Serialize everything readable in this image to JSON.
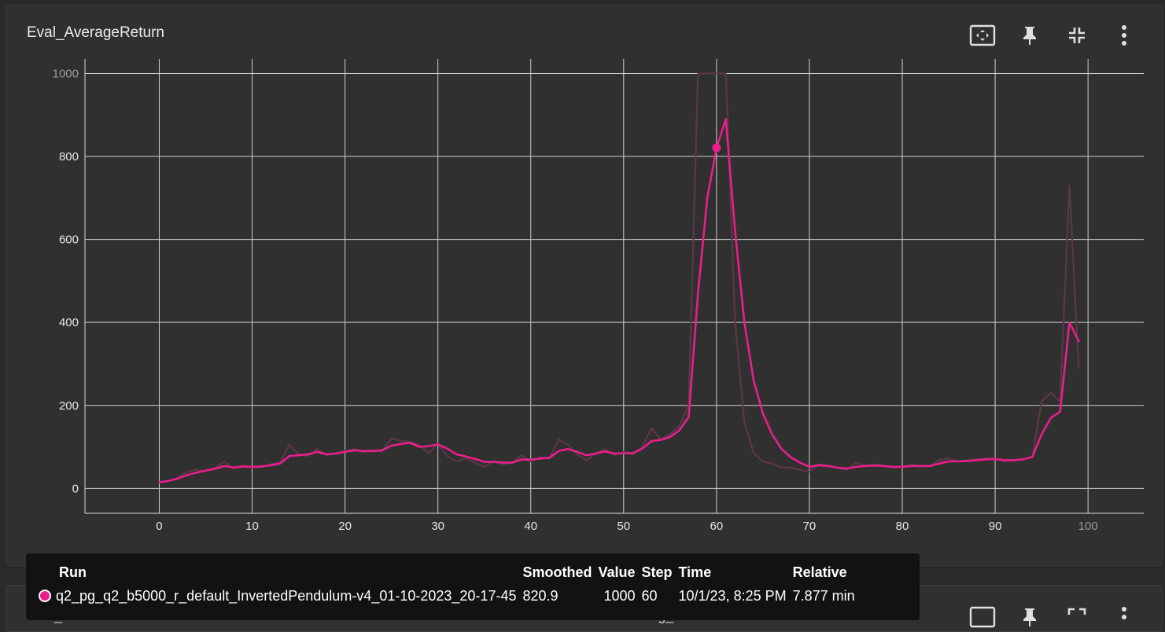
{
  "card": {
    "title": "Eval_AverageReturn",
    "tools": [
      {
        "name": "fit-domain-icon"
      },
      {
        "name": "pin-icon"
      },
      {
        "name": "collapse-icon"
      },
      {
        "name": "more-vert-icon"
      }
    ]
  },
  "chart_data": {
    "type": "line",
    "title": "Eval_AverageReturn",
    "xlabel": "",
    "ylabel": "",
    "xlim": [
      -8,
      106
    ],
    "ylim": [
      -60,
      1035
    ],
    "x_ticks": [
      0,
      10,
      20,
      30,
      40,
      50,
      60,
      70,
      80,
      90,
      100
    ],
    "y_ticks": [
      0,
      200,
      400,
      600,
      800,
      1000
    ],
    "grid": true,
    "colors": {
      "smoothed": "#e91e8c",
      "raw": "#5a3848"
    },
    "series": [
      {
        "name": "q2_pg_q2_b5000_r_default_InvertedPendulum-v4_01-10-2023_20-17-45",
        "role": "raw",
        "x": [
          0,
          1,
          2,
          3,
          4,
          5,
          6,
          7,
          8,
          9,
          10,
          11,
          12,
          13,
          14,
          15,
          16,
          17,
          18,
          19,
          20,
          21,
          22,
          23,
          24,
          25,
          26,
          27,
          28,
          29,
          30,
          31,
          32,
          33,
          34,
          35,
          36,
          37,
          38,
          39,
          40,
          41,
          42,
          43,
          44,
          45,
          46,
          47,
          48,
          49,
          50,
          51,
          52,
          53,
          54,
          55,
          56,
          57,
          58,
          59,
          60,
          61,
          62,
          63,
          64,
          65,
          66,
          67,
          68,
          69,
          70,
          71,
          72,
          73,
          74,
          75,
          76,
          77,
          78,
          79,
          80,
          81,
          82,
          83,
          84,
          85,
          86,
          87,
          88,
          89,
          90,
          91,
          92,
          93,
          94,
          95,
          96,
          97,
          98,
          99
        ],
        "y": [
          15,
          18,
          25,
          40,
          45,
          42,
          50,
          65,
          48,
          55,
          50,
          52,
          58,
          62,
          105,
          82,
          78,
          95,
          80,
          85,
          90,
          95,
          88,
          92,
          90,
          120,
          115,
          112,
          105,
          85,
          108,
          78,
          65,
          72,
          62,
          52,
          65,
          58,
          62,
          80,
          65,
          75,
          72,
          118,
          105,
          82,
          68,
          85,
          95,
          80,
          88,
          82,
          100,
          145,
          118,
          130,
          150,
          200,
          1000,
          1000,
          1000,
          1000,
          400,
          160,
          85,
          65,
          60,
          50,
          50,
          45,
          40,
          58,
          55,
          50,
          45,
          62,
          55,
          58,
          55,
          50,
          52,
          58,
          52,
          55,
          68,
          72,
          65,
          68,
          70,
          72,
          72,
          65,
          68,
          70,
          75,
          210,
          230,
          210,
          730,
          290
        ]
      },
      {
        "name": "q2_pg_q2_b5000_r_default_InvertedPendulum-v4_01-10-2023_20-17-45",
        "role": "smoothed",
        "x": [
          0,
          1,
          2,
          3,
          4,
          5,
          6,
          7,
          8,
          9,
          10,
          11,
          12,
          13,
          14,
          15,
          16,
          17,
          18,
          19,
          20,
          21,
          22,
          23,
          24,
          25,
          26,
          27,
          28,
          29,
          30,
          31,
          32,
          33,
          34,
          35,
          36,
          37,
          38,
          39,
          40,
          41,
          42,
          43,
          44,
          45,
          46,
          47,
          48,
          49,
          50,
          51,
          52,
          53,
          54,
          55,
          56,
          57,
          58,
          59,
          60,
          61,
          62,
          63,
          64,
          65,
          66,
          67,
          68,
          69,
          70,
          71,
          72,
          73,
          74,
          75,
          76,
          77,
          78,
          79,
          80,
          81,
          82,
          83,
          84,
          85,
          86,
          87,
          88,
          89,
          90,
          91,
          92,
          93,
          94,
          95,
          96,
          97,
          98,
          99
        ],
        "y": [
          15,
          18,
          24,
          32,
          38,
          43,
          47,
          54,
          50,
          53,
          52,
          53,
          56,
          60,
          78,
          80,
          82,
          88,
          82,
          84,
          88,
          92,
          90,
          90,
          92,
          103,
          107,
          110,
          100,
          102,
          106,
          96,
          82,
          77,
          71,
          64,
          64,
          62,
          62,
          70,
          69,
          72,
          74,
          90,
          95,
          88,
          80,
          84,
          89,
          84,
          85,
          85,
          96,
          114,
          117,
          124,
          140,
          172,
          470,
          700,
          820,
          890,
          620,
          400,
          260,
          180,
          130,
          95,
          75,
          62,
          52,
          56,
          54,
          50,
          48,
          52,
          54,
          55,
          54,
          52,
          52,
          54,
          54,
          54,
          60,
          65,
          65,
          66,
          68,
          70,
          71,
          68,
          68,
          70,
          76,
          130,
          170,
          185,
          400,
          355
        ]
      }
    ],
    "highlight": {
      "x": 60,
      "y": 820.9
    }
  },
  "tooltip": {
    "headers": {
      "run": "Run",
      "smoothed": "Smoothed",
      "value": "Value",
      "step": "Step",
      "time": "Time",
      "relative": "Relative"
    },
    "row": {
      "run": "q2_pg_q2_b5000_r_default_InvertedPendulum-v4_01-10-2023_20-17-45",
      "smoothed": "820.9",
      "value": "1000",
      "step": "60",
      "time": "10/1/23, 8:25 PM",
      "relative": "7.877 min"
    }
  },
  "next_cards": {
    "left_title": "Eval_StdReturn",
    "mid_title": "Training_Loss"
  }
}
